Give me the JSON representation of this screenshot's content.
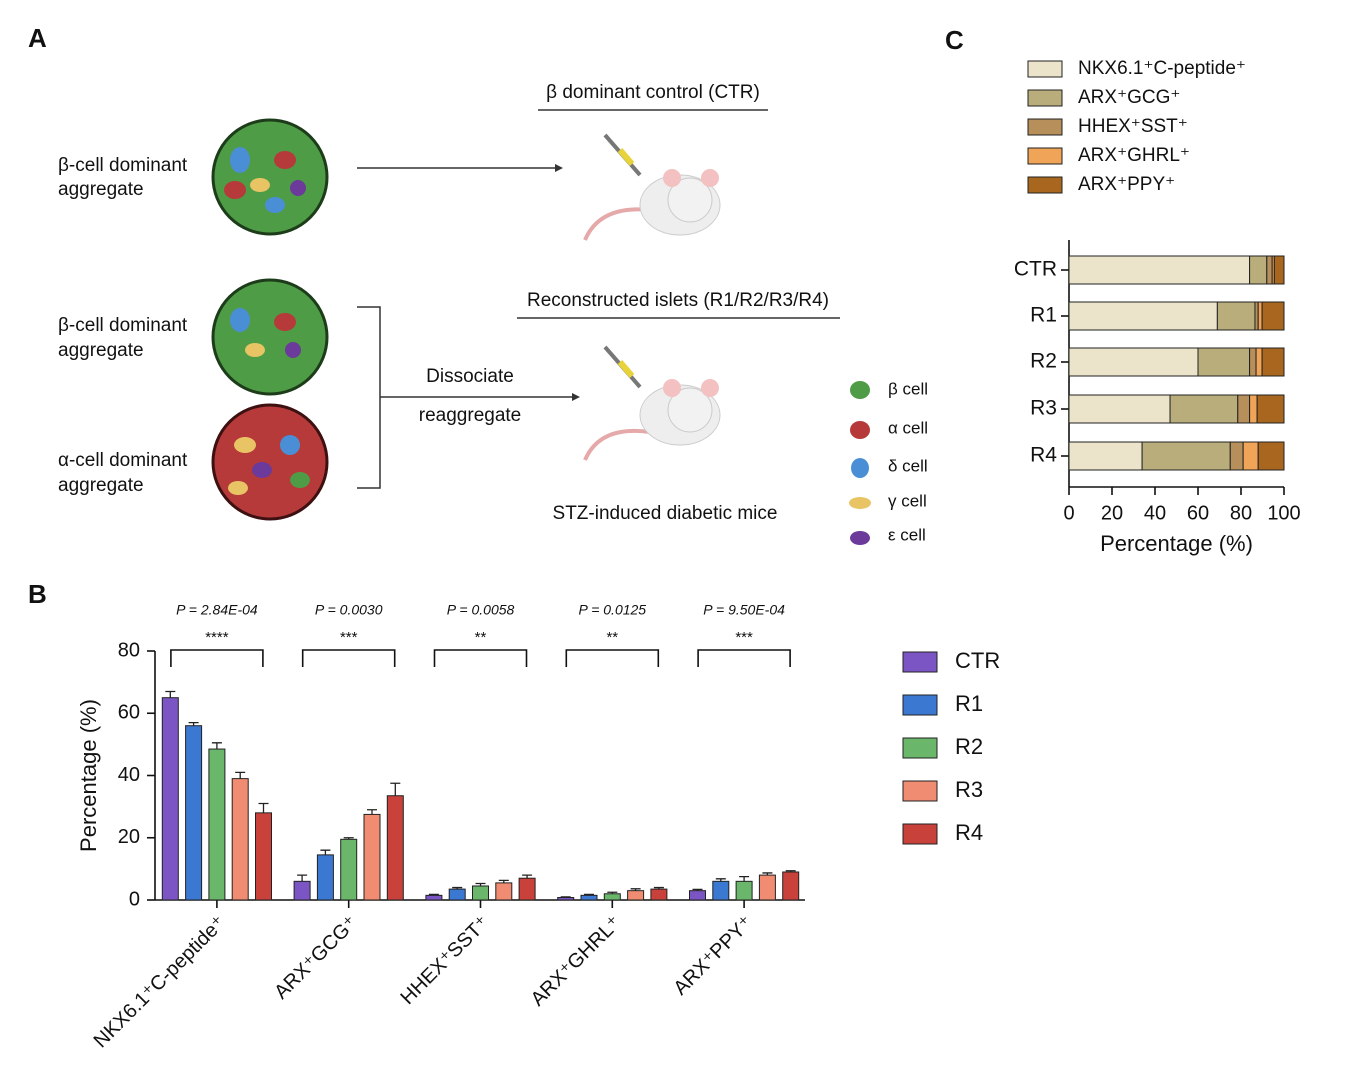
{
  "panels": {
    "a": "A",
    "b": "B",
    "c": "C"
  },
  "diagram": {
    "beta_aggregate_1": [
      "β-cell dominant",
      "aggregate"
    ],
    "beta_aggregate_2": [
      "β-cell dominant",
      "aggregate"
    ],
    "alpha_aggregate": [
      "α-cell dominant",
      "aggregate"
    ],
    "control_label": "β dominant control (CTR)",
    "reconstructed_label": "Reconstructed islets (R1/R2/R3/R4)",
    "step": [
      "Dissociate",
      "reaggregate"
    ],
    "mice_label": "STZ-induced diabetic mice",
    "cell_legend": [
      "β cell",
      "α cell",
      "δ cell",
      "γ cell",
      "ε cell"
    ]
  },
  "chart_data": [
    {
      "type": "bar",
      "ylabel": "Percentage (%)",
      "categories": [
        "NKX6.1⁺C-peptide⁺",
        "ARX⁺GCG⁺",
        "HHEX⁺SST⁺",
        "ARX⁺GHRL⁺",
        "ARX⁺PPY⁺"
      ],
      "series": [
        {
          "name": "CTR",
          "color": "#7b55c4",
          "values": [
            65,
            6,
            1.5,
            0.8,
            3
          ],
          "errors": [
            2,
            2,
            0.3,
            0.2,
            0.4
          ]
        },
        {
          "name": "R1",
          "color": "#3b78d2",
          "values": [
            56,
            14.5,
            3.5,
            1.5,
            6
          ],
          "errors": [
            1,
            1.5,
            0.5,
            0.3,
            0.8
          ]
        },
        {
          "name": "R2",
          "color": "#6ab66a",
          "values": [
            48.5,
            19.5,
            4.5,
            2,
            6
          ],
          "errors": [
            2,
            0.5,
            0.8,
            0.5,
            1.5
          ]
        },
        {
          "name": "R3",
          "color": "#f08c72",
          "values": [
            39,
            27.5,
            5.5,
            3,
            8
          ],
          "errors": [
            2,
            1.5,
            0.8,
            0.6,
            0.7
          ]
        },
        {
          "name": "R4",
          "color": "#c8413a",
          "values": [
            28,
            33.5,
            7,
            3.5,
            9
          ],
          "errors": [
            3,
            4,
            1,
            0.5,
            0.4
          ]
        }
      ],
      "annotations": [
        {
          "p": "P = 2.84E-04",
          "stars": "****"
        },
        {
          "p": "P = 0.0030",
          "stars": "***"
        },
        {
          "p": "P = 0.0058",
          "stars": "**"
        },
        {
          "p": "P = 0.0125",
          "stars": "**"
        },
        {
          "p": "P = 9.50E-04",
          "stars": "***"
        }
      ],
      "ylim": [
        0,
        80
      ],
      "yticks": [
        0,
        20,
        40,
        60,
        80
      ]
    },
    {
      "type": "bar",
      "stacked": true,
      "horizontal": true,
      "xlabel": "Percentage (%)",
      "categories": [
        "CTR",
        "R1",
        "R2",
        "R3",
        "R4"
      ],
      "series": [
        {
          "name": "NKX6.1⁺C-peptide⁺",
          "color": "#ebe4cb",
          "values": [
            84,
            69,
            60,
            47,
            34
          ]
        },
        {
          "name": "ARX⁺GCG⁺",
          "color": "#b9ae7b",
          "values": [
            8,
            17.5,
            24,
            31.5,
            41
          ]
        },
        {
          "name": "HHEX⁺SST⁺",
          "color": "#b68f5b",
          "values": [
            2.5,
            1.5,
            3,
            5.5,
            6
          ]
        },
        {
          "name": "ARX⁺GHRL⁺",
          "color": "#efa457",
          "values": [
            1,
            1.8,
            2.8,
            3.5,
            7
          ]
        },
        {
          "name": "ARX⁺PPY⁺",
          "color": "#a8661f",
          "values": [
            4.5,
            10.2,
            10.2,
            12.5,
            12
          ]
        }
      ],
      "xlim": [
        0,
        100
      ],
      "xticks": [
        0,
        20,
        40,
        60,
        80,
        100
      ]
    }
  ]
}
